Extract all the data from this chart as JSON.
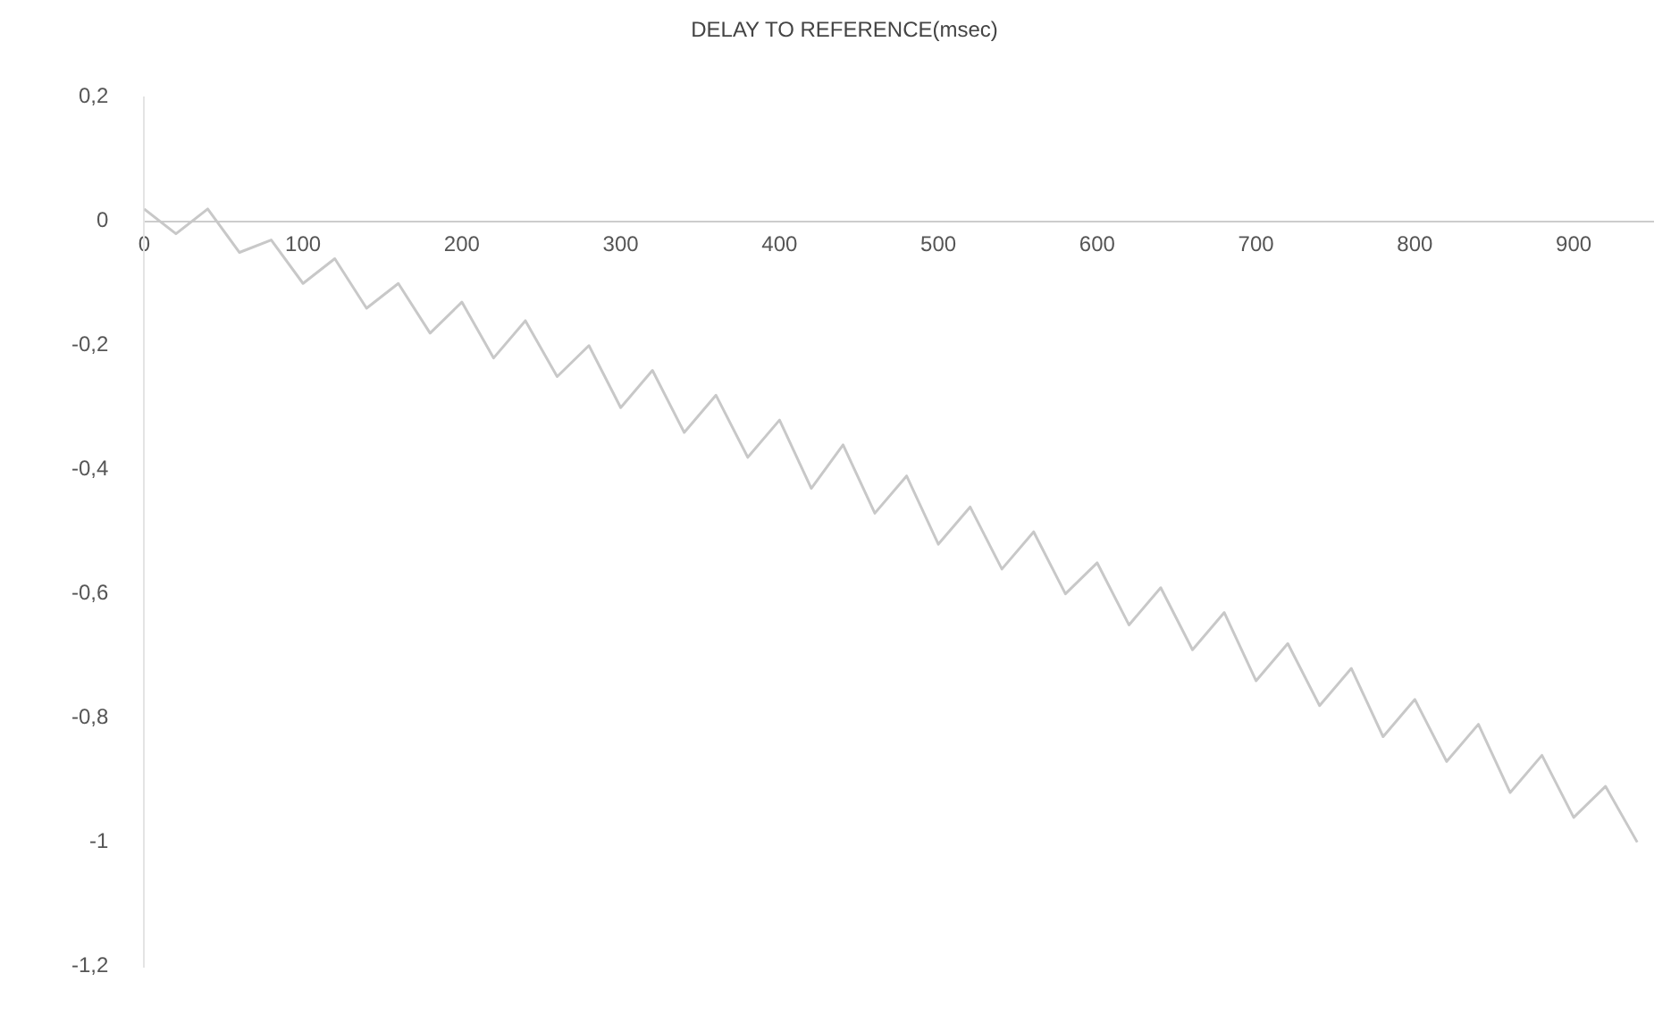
{
  "chart_data": {
    "type": "line",
    "title": "DELAY TO REFERENCE(msec)",
    "x": [
      0,
      20,
      40,
      60,
      80,
      100,
      120,
      140,
      160,
      180,
      200,
      220,
      240,
      260,
      280,
      300,
      320,
      340,
      360,
      380,
      400,
      420,
      440,
      460,
      480,
      500,
      520,
      540,
      560,
      580,
      600,
      620,
      640,
      660,
      680,
      700,
      720,
      740,
      760,
      780,
      800,
      820,
      840,
      860,
      880,
      900,
      920,
      940
    ],
    "series": [
      {
        "color": "#c8c8c8",
        "values": [
          0.02,
          -0.02,
          0.02,
          -0.05,
          -0.03,
          -0.1,
          -0.06,
          -0.14,
          -0.1,
          -0.18,
          -0.13,
          -0.22,
          -0.16,
          -0.25,
          -0.2,
          -0.3,
          -0.24,
          -0.34,
          -0.28,
          -0.38,
          -0.32,
          -0.43,
          -0.36,
          -0.47,
          -0.41,
          -0.52,
          -0.46,
          -0.56,
          -0.5,
          -0.6,
          -0.55,
          -0.65,
          -0.59,
          -0.69,
          -0.63,
          -0.74,
          -0.68,
          -0.78,
          -0.72,
          -0.83,
          -0.77,
          -0.87,
          -0.81,
          -0.92,
          -0.86,
          -0.96,
          -0.91,
          -1.0
        ]
      }
    ],
    "xlim": [
      0,
      950
    ],
    "xticks": [
      0,
      100,
      200,
      300,
      400,
      500,
      600,
      700,
      800,
      900
    ],
    "ylim": [
      -1.2,
      0.2
    ],
    "yticks": [
      {
        "value": 0.2,
        "label": "0,2"
      },
      0,
      {
        "value": -0.2,
        "label": "-0,2"
      },
      {
        "value": -0.4,
        "label": "-0,4"
      },
      {
        "value": -0.6,
        "label": "-0,6"
      },
      {
        "value": -0.8,
        "label": "-0,8"
      },
      -1,
      {
        "value": -1.2,
        "label": "-1,2"
      }
    ],
    "grid": false,
    "legend": false,
    "marker": "none",
    "line_style": "solid"
  }
}
